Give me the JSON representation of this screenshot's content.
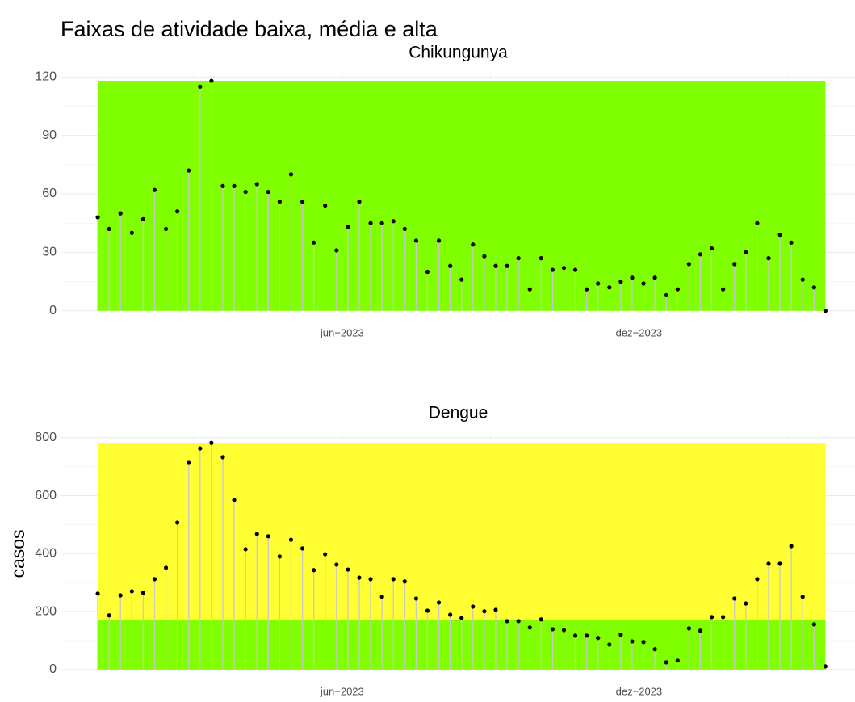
{
  "title": "Faixas de atividade baixa, média e alta",
  "chart_data": [
    {
      "type": "lollipop",
      "title": "Chikungunya",
      "x": [
        1,
        2,
        3,
        4,
        5,
        6,
        7,
        8,
        9,
        10,
        11,
        12,
        13,
        14,
        15,
        16,
        17,
        18,
        19,
        20,
        21,
        22,
        23,
        24,
        25,
        26,
        27,
        28,
        29,
        30,
        31,
        32,
        33,
        34,
        35,
        36,
        37,
        38,
        39,
        40,
        41,
        42,
        43,
        44,
        45,
        46,
        47,
        48,
        49,
        50,
        51,
        52,
        53,
        54,
        55,
        56,
        57,
        58,
        59,
        60,
        61,
        62,
        63,
        64,
        65
      ],
      "values": [
        48,
        42,
        50,
        40,
        47,
        62,
        42,
        51,
        72,
        115,
        118,
        64,
        64,
        61,
        65,
        61,
        56,
        70,
        56,
        35,
        54,
        31,
        43,
        56,
        45,
        45,
        46,
        42,
        36,
        20,
        36,
        23,
        16,
        34,
        28,
        23,
        23,
        27,
        11,
        27,
        21,
        22,
        21,
        11,
        14,
        12,
        15,
        17,
        14,
        17,
        8,
        11,
        24,
        29,
        32,
        11,
        24,
        30,
        45,
        27,
        39,
        35,
        16,
        12,
        0
      ],
      "bands": [
        {
          "from": 0,
          "to": 118,
          "color": "#7fff00"
        }
      ],
      "xlim": [
        -2.2,
        67.6
      ],
      "xticks": [
        {
          "value": 22.5,
          "label": "jun−2023"
        },
        {
          "value": 48.6,
          "label": "dez−2023"
        }
      ],
      "ylim": [
        -3,
        123
      ],
      "yticks": [
        0,
        30,
        60,
        90,
        120
      ],
      "grid": true
    },
    {
      "type": "lollipop",
      "title": "Dengue",
      "ylabel": "casos",
      "x": [
        1,
        2,
        3,
        4,
        5,
        6,
        7,
        8,
        9,
        10,
        11,
        12,
        13,
        14,
        15,
        16,
        17,
        18,
        19,
        20,
        21,
        22,
        23,
        24,
        25,
        26,
        27,
        28,
        29,
        30,
        31,
        32,
        33,
        34,
        35,
        36,
        37,
        38,
        39,
        40,
        41,
        42,
        43,
        44,
        45,
        46,
        47,
        48,
        49,
        50,
        51,
        52,
        53,
        54,
        55,
        56,
        57,
        58,
        59,
        60,
        61,
        62,
        63,
        64,
        65
      ],
      "values": [
        262,
        187,
        256,
        270,
        265,
        312,
        351,
        507,
        713,
        763,
        782,
        733,
        585,
        415,
        468,
        460,
        390,
        448,
        418,
        343,
        398,
        362,
        345,
        317,
        312,
        251,
        312,
        304,
        245,
        203,
        231,
        189,
        178,
        217,
        201,
        206,
        167,
        167,
        145,
        173,
        139,
        136,
        117,
        117,
        109,
        86,
        120,
        97,
        95,
        70,
        25,
        31,
        142,
        134,
        181,
        181,
        245,
        228,
        312,
        365,
        365,
        426,
        251,
        156,
        11
      ],
      "bands": [
        {
          "from": 0,
          "to": 172,
          "color": "#7fff00"
        },
        {
          "from": 172,
          "to": 782,
          "color": "#ffff33"
        }
      ],
      "xlim": [
        -2.2,
        67.6
      ],
      "xticks": [
        {
          "value": 22.5,
          "label": "jun−2023"
        },
        {
          "value": 48.6,
          "label": "dez−2023"
        }
      ],
      "ylim": [
        -20,
        819
      ],
      "yticks": [
        0,
        200,
        400,
        600,
        800
      ],
      "grid": true
    }
  ]
}
